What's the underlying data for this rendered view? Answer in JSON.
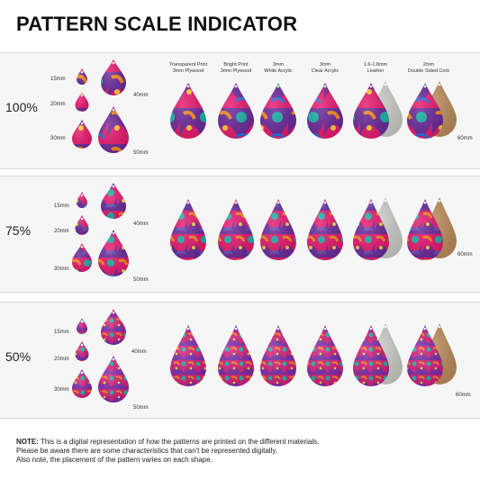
{
  "title": "PATTERN SCALE INDICATOR",
  "sizes": [
    "15mm",
    "20mm",
    "30mm",
    "40mm",
    "50mm"
  ],
  "materials": [
    {
      "line1": "Transparent Print",
      "line2": "3mm Plywood"
    },
    {
      "line1": "Bright Print",
      "line2": "3mm Plywood"
    },
    {
      "line1": "3mm",
      "line2": "White Acrylic"
    },
    {
      "line1": "3mm",
      "line2": "Clear Acrylic"
    },
    {
      "line1": "1.6-1.8mm",
      "line2": "Leather"
    },
    {
      "line1": "2mm",
      "line2": "Double Sided Cork"
    }
  ],
  "material_size": "60mm",
  "rows": [
    {
      "scale": "100%"
    },
    {
      "scale": "75%"
    },
    {
      "scale": "50%"
    }
  ],
  "note": {
    "label": "NOTE:",
    "line1": " This is a digital representation of how the patterns are printed on the different materials.",
    "line2": "Please be aware there are some characteristics that can't be represented digitally.",
    "line3": "Also note, the placement of the pattern varies on each shape."
  },
  "colors": {
    "accent": "#e6196e",
    "purple": "#6a2a9a",
    "blue": "#2a6ad8",
    "teal": "#1fb0a8",
    "orange": "#f58a1f",
    "yellow": "#f7d23a",
    "leather": "#c9c9c4",
    "cork": "#b98a5a"
  }
}
